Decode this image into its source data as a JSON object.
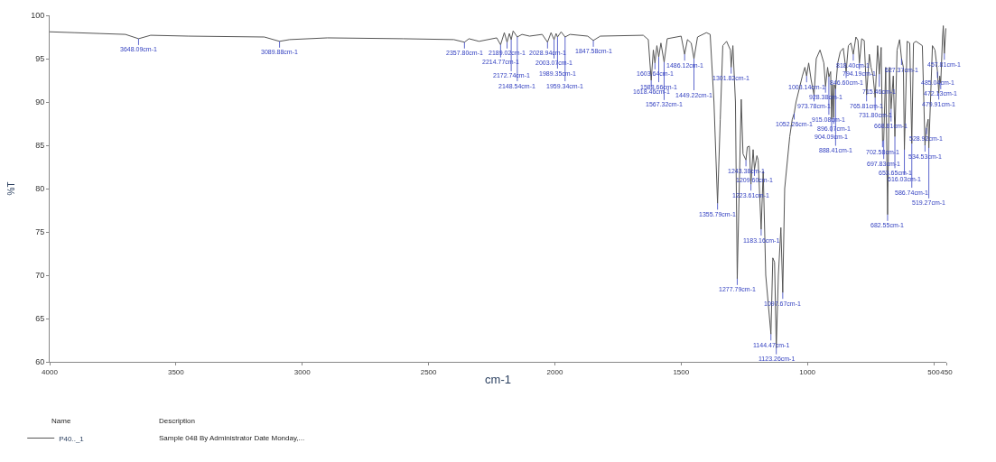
{
  "chart_data": {
    "type": "line",
    "xlabel": "cm-1",
    "ylabel": "%T",
    "xlim": [
      4000,
      450
    ],
    "xticks": [
      4000,
      3500,
      3000,
      2500,
      2000,
      1500,
      1000,
      500,
      450
    ],
    "ylim": [
      60,
      100
    ],
    "yticks": [
      60,
      65,
      70,
      75,
      80,
      85,
      90,
      95,
      100
    ],
    "legend": "bottom left",
    "marker": "none",
    "line_style": "solid",
    "series": [
      {
        "name": "P40.._1",
        "color": "#555555",
        "x": [
          4000,
          3900,
          3800,
          3700,
          3648.09,
          3600,
          3450,
          3150,
          3089.88,
          3050,
          2900,
          2600,
          2400,
          2357.8,
          2340,
          2300,
          2230,
          2214.77,
          2200,
          2189.02,
          2180,
          2172.74,
          2165,
          2148.54,
          2130,
          2100,
          2050,
          2028.94,
          2015,
          2003.07,
          1995,
          1989.35,
          1975,
          1959.34,
          1940,
          1870,
          1847.58,
          1820,
          1650,
          1630,
          1618.46,
          1610,
          1603.64,
          1596,
          1588.66,
          1580,
          1567.32,
          1555,
          1500,
          1486.12,
          1475,
          1460,
          1449.22,
          1435,
          1400,
          1385,
          1370,
          1355.79,
          1345,
          1335,
          1320,
          1305,
          1301.82,
          1295,
          1285,
          1277.79,
          1270,
          1262,
          1255,
          1243.38,
          1238,
          1230,
          1223.61,
          1215,
          1209.6,
          1200,
          1195,
          1183.16,
          1175,
          1165,
          1144.47,
          1137,
          1130,
          1123.26,
          1115,
          1105,
          1097.67,
          1090,
          1070,
          1060,
          1052.26,
          1045,
          1020,
          1010,
          1003.14,
          995,
          985,
          973.78,
          965,
          950,
          935,
          928.38,
          920,
          915.08,
          908,
          904.09,
          900,
          896.07,
          893,
          888.41,
          880,
          870,
          858,
          846.6,
          838,
          828,
          818.4,
          808,
          800,
          794.19,
          785,
          775,
          765.81,
          755,
          748,
          740,
          731.8,
          722,
          715.46,
          708,
          702.58,
          697.83,
          690,
          682.55,
          675,
          668.81,
          660,
          653.65,
          645,
          635,
          627.37,
          620,
          616.03,
          605,
          595,
          586.74,
          580,
          570,
          545,
          534.53,
          528.92,
          522,
          519.27,
          505,
          495,
          485.04,
          479.91,
          476,
          472.13,
          465,
          462,
          457.81,
          452
        ],
        "values": [
          98.1,
          98.0,
          97.9,
          97.8,
          97.3,
          97.7,
          97.6,
          97.5,
          97.0,
          97.2,
          97.4,
          97.3,
          97.2,
          96.9,
          97.3,
          97.0,
          97.4,
          96.6,
          98.0,
          96.9,
          97.9,
          97.2,
          98.2,
          97.5,
          97.8,
          97.6,
          97.8,
          96.9,
          98.0,
          97.2,
          97.9,
          97.5,
          98.1,
          97.5,
          97.8,
          97.6,
          97.1,
          97.6,
          97.7,
          97.2,
          92.5,
          96.0,
          94.5,
          96.5,
          95.2,
          96.8,
          94.6,
          97.3,
          97.6,
          95.5,
          97.2,
          96.8,
          95.0,
          97.5,
          98.0,
          97.8,
          90.0,
          78.3,
          88.0,
          96.5,
          97.0,
          96.0,
          94.0,
          96.5,
          90.0,
          69.6,
          80.0,
          90.3,
          84.0,
          83.3,
          84.8,
          84.9,
          80.5,
          84.5,
          82.2,
          83.8,
          83.3,
          75.3,
          82.0,
          70.0,
          63.2,
          72.0,
          71.5,
          61.6,
          70.0,
          75.5,
          68.0,
          80.0,
          86.0,
          88.0,
          88.7,
          90.0,
          93.0,
          94.0,
          93.0,
          94.5,
          92.5,
          90.8,
          95.0,
          96.0,
          94.5,
          91.8,
          94.0,
          92.9,
          93.5,
          88.0,
          92.0,
          88.2,
          92.0,
          91.5,
          94.5,
          95.8,
          96.2,
          93.5,
          96.5,
          96.8,
          95.5,
          97.5,
          97.1,
          94.5,
          97.3,
          97.1,
          90.8,
          95.5,
          94.0,
          93.0,
          90.5,
          96.5,
          93.2,
          96.3,
          85.5,
          85.6,
          94.0,
          77.0,
          94.0,
          89.2,
          93.0,
          86.0,
          96.0,
          97.2,
          95.0,
          94.0,
          84.5,
          97.0,
          96.8,
          85.2,
          96.8,
          97.0,
          96.5,
          85.0,
          87.0,
          88.0,
          84.7,
          96.5,
          96.0,
          93.5,
          91.0,
          93.0,
          92.2,
          97.5,
          98.8,
          95.6,
          98.5
        ]
      }
    ],
    "annotations": [
      {
        "text": "3648.09cm-1",
        "x": 3648.09,
        "y": 97.3
      },
      {
        "text": "3089.88cm-1",
        "x": 3089.88,
        "y": 97.0
      },
      {
        "text": "2357.80cm-1",
        "x": 2357.8,
        "y": 96.9
      },
      {
        "text": "2214.77cm-1",
        "x": 2214.77,
        "y": 96.6
      },
      {
        "text": "2189.02cm-1",
        "x": 2189.02,
        "y": 96.9
      },
      {
        "text": "2172.74cm-1",
        "x": 2172.74,
        "y": 97.2
      },
      {
        "text": "2148.54cm-1",
        "x": 2148.54,
        "y": 97.5
      },
      {
        "text": "2028.94cm-1",
        "x": 2028.94,
        "y": 96.9
      },
      {
        "text": "2003.07cm-1",
        "x": 2003.07,
        "y": 97.2
      },
      {
        "text": "1989.35cm-1",
        "x": 1989.35,
        "y": 97.5
      },
      {
        "text": "1959.34cm-1",
        "x": 1959.34,
        "y": 97.5
      },
      {
        "text": "1847.58cm-1",
        "x": 1847.58,
        "y": 97.1
      },
      {
        "text": "1618.46cm-1",
        "x": 1618.46,
        "y": 92.5
      },
      {
        "text": "1603.64cm-1",
        "x": 1603.64,
        "y": 94.5
      },
      {
        "text": "1588.66cm-1",
        "x": 1588.66,
        "y": 95.2
      },
      {
        "text": "1567.32cm-1",
        "x": 1567.32,
        "y": 94.6
      },
      {
        "text": "1486.12cm-1",
        "x": 1486.12,
        "y": 95.5
      },
      {
        "text": "1449.22cm-1",
        "x": 1449.22,
        "y": 95.0
      },
      {
        "text": "1355.79cm-1",
        "x": 1355.79,
        "y": 78.3
      },
      {
        "text": "1301.82cm-1",
        "x": 1301.82,
        "y": 94.0
      },
      {
        "text": "1277.79cm-1",
        "x": 1277.79,
        "y": 69.6
      },
      {
        "text": "1243.38cm-1",
        "x": 1243.38,
        "y": 83.3
      },
      {
        "text": "1223.61cm-1",
        "x": 1223.61,
        "y": 80.5
      },
      {
        "text": "1209.60cm-1",
        "x": 1209.6,
        "y": 82.2
      },
      {
        "text": "1183.16cm-1",
        "x": 1183.16,
        "y": 75.3
      },
      {
        "text": "1144.47cm-1",
        "x": 1144.47,
        "y": 63.2
      },
      {
        "text": "1123.26cm-1",
        "x": 1123.26,
        "y": 61.6
      },
      {
        "text": "1097.67cm-1",
        "x": 1097.67,
        "y": 68.0
      },
      {
        "text": "1052.26cm-1",
        "x": 1052.26,
        "y": 88.7
      },
      {
        "text": "1003.14cm-1",
        "x": 1003.14,
        "y": 93.0
      },
      {
        "text": "973.78cm-1",
        "x": 973.78,
        "y": 90.8
      },
      {
        "text": "928.38cm-1",
        "x": 928.38,
        "y": 91.8
      },
      {
        "text": "915.08cm-1",
        "x": 915.08,
        "y": 92.9
      },
      {
        "text": "904.09cm-1",
        "x": 904.09,
        "y": 88.0
      },
      {
        "text": "896.07cm-1",
        "x": 896.07,
        "y": 88.2
      },
      {
        "text": "888.41cm-1",
        "x": 888.41,
        "y": 91.5
      },
      {
        "text": "846.60cm-1",
        "x": 846.6,
        "y": 93.5
      },
      {
        "text": "818.40cm-1",
        "x": 818.4,
        "y": 95.5
      },
      {
        "text": "794.19cm-1",
        "x": 794.19,
        "y": 94.5
      },
      {
        "text": "765.81cm-1",
        "x": 765.81,
        "y": 90.8
      },
      {
        "text": "731.80cm-1",
        "x": 731.8,
        "y": 90.5
      },
      {
        "text": "715.46cm-1",
        "x": 715.46,
        "y": 93.2
      },
      {
        "text": "702.58cm-1",
        "x": 702.58,
        "y": 85.5
      },
      {
        "text": "697.83cm-1",
        "x": 697.83,
        "y": 85.6
      },
      {
        "text": "682.55cm-1",
        "x": 682.55,
        "y": 77.0
      },
      {
        "text": "668.81cm-1",
        "x": 668.81,
        "y": 89.2
      },
      {
        "text": "653.65cm-1",
        "x": 653.65,
        "y": 86.0
      },
      {
        "text": "627.37cm-1",
        "x": 627.37,
        "y": 95.0
      },
      {
        "text": "616.03cm-1",
        "x": 616.03,
        "y": 84.5
      },
      {
        "text": "586.74cm-1",
        "x": 586.74,
        "y": 85.2
      },
      {
        "text": "534.53cm-1",
        "x": 534.53,
        "y": 85.0
      },
      {
        "text": "528.92cm-1",
        "x": 528.92,
        "y": 87.0
      },
      {
        "text": "519.27cm-1",
        "x": 519.27,
        "y": 84.7
      },
      {
        "text": "485.04cm-1",
        "x": 485.04,
        "y": 93.5
      },
      {
        "text": "479.91cm-1",
        "x": 479.91,
        "y": 91.0
      },
      {
        "text": "472.13cm-1",
        "x": 472.13,
        "y": 92.2
      },
      {
        "text": "457.81cm-1",
        "x": 457.81,
        "y": 95.6
      },
      "Name",
      "Description",
      "Sample 048 By Administrator Date Monday,..."
    ]
  }
}
